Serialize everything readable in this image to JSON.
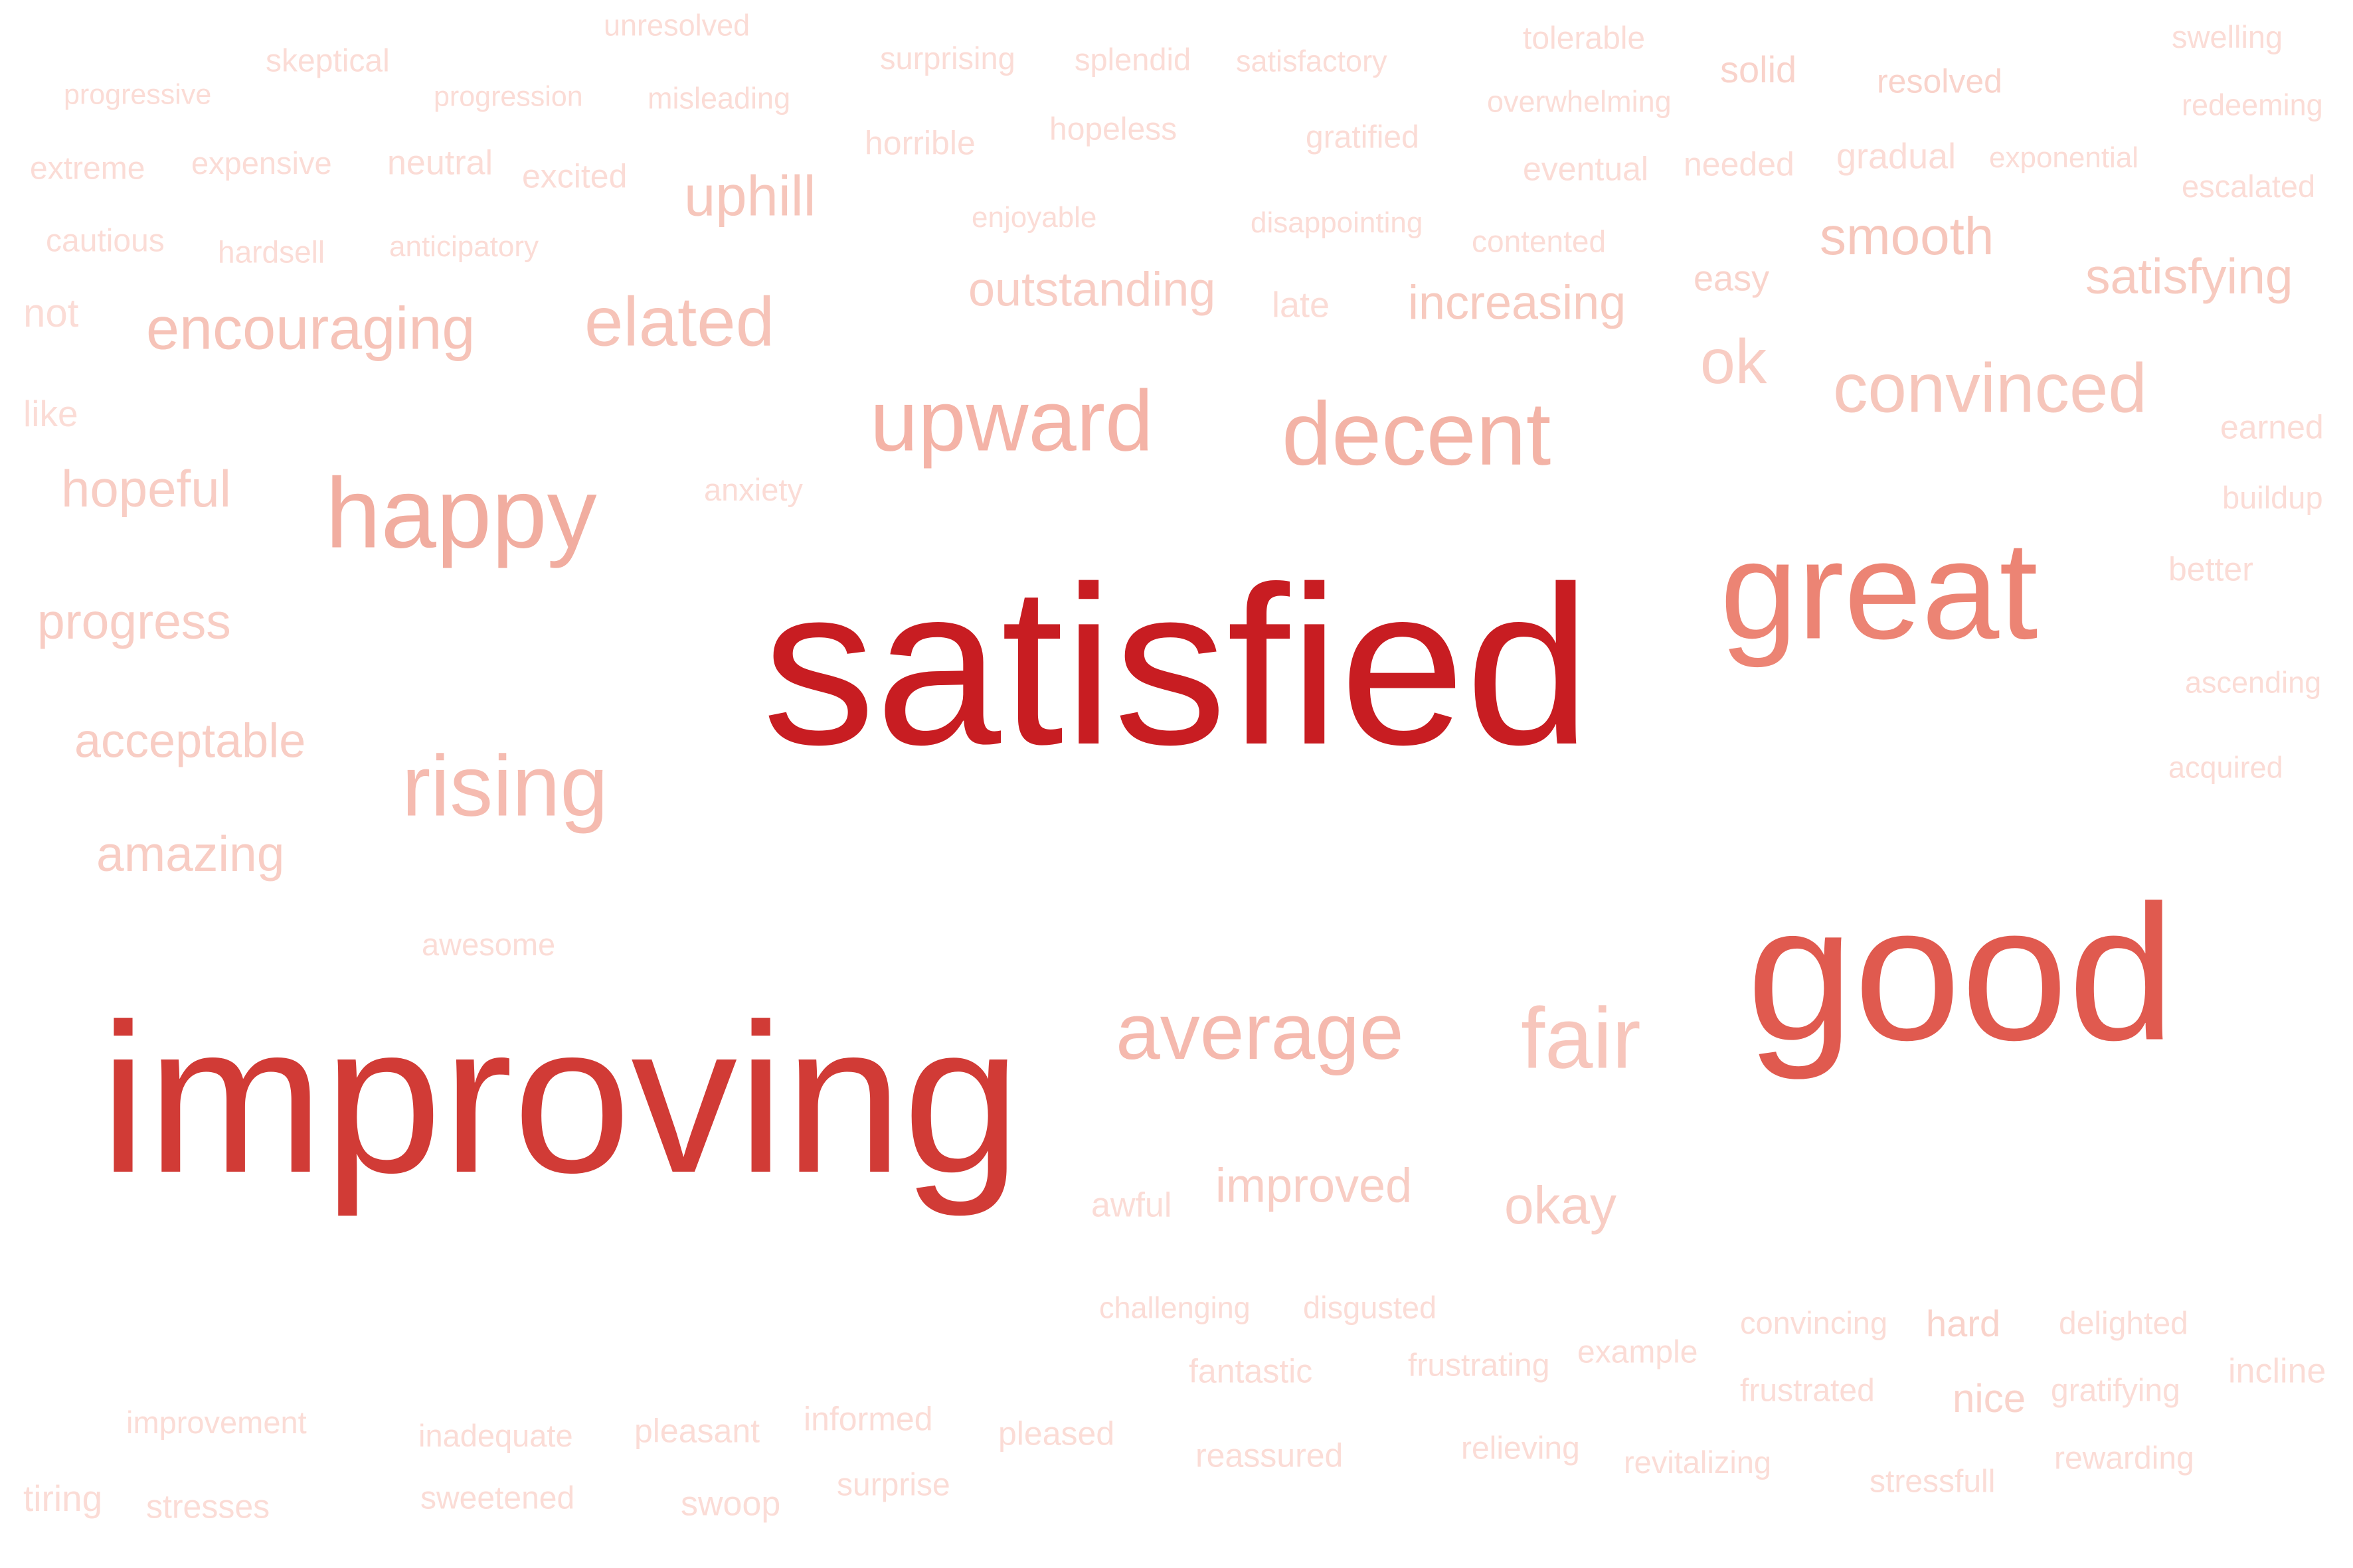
{
  "words": [
    {
      "text": "satisfied",
      "color": "#c81d22"
    },
    {
      "text": "improving",
      "color": "#d13b36"
    },
    {
      "text": "good",
      "color": "#e05a4f"
    },
    {
      "text": "great",
      "color": "#ec8474"
    },
    {
      "text": "happy",
      "color": "#f1ada0"
    },
    {
      "text": "decent",
      "color": "#f3b3a6"
    },
    {
      "text": "upward",
      "color": "#f4b3a7"
    },
    {
      "text": "rising",
      "color": "#f5bbb0"
    },
    {
      "text": "average",
      "color": "#f5b9ae"
    },
    {
      "text": "fair",
      "color": "#f7c6bc"
    },
    {
      "text": "elated",
      "color": "#f6c3b8"
    },
    {
      "text": "encouraging",
      "color": "#f6c3b8"
    },
    {
      "text": "convinced",
      "color": "#f6c6bb"
    },
    {
      "text": "ok",
      "color": "#f8cdc4"
    },
    {
      "text": "smooth",
      "color": "#f6c6bb"
    },
    {
      "text": "uphill",
      "color": "#f6c6bb"
    },
    {
      "text": "satisfying",
      "color": "#f7cabf"
    },
    {
      "text": "increasing",
      "color": "#f7cabf"
    },
    {
      "text": "outstanding",
      "color": "#f8cdc4"
    },
    {
      "text": "hopeful",
      "color": "#f8cdc4"
    },
    {
      "text": "progress",
      "color": "#f8cdc4"
    },
    {
      "text": "acceptable",
      "color": "#f8cdc4"
    },
    {
      "text": "amazing",
      "color": "#f8cdc4"
    },
    {
      "text": "okay",
      "color": "#f8cdc4"
    },
    {
      "text": "improved",
      "color": "#f8cdc4"
    },
    {
      "text": "nice",
      "color": "#f9d3cb"
    },
    {
      "text": "unresolved",
      "color": "#fbdcd6"
    },
    {
      "text": "skeptical",
      "color": "#fbdcd6"
    },
    {
      "text": "progressive",
      "color": "#fbdcd6"
    },
    {
      "text": "progression",
      "color": "#fbdcd6"
    },
    {
      "text": "misleading",
      "color": "#fbdcd6"
    },
    {
      "text": "surprising",
      "color": "#fbdcd6"
    },
    {
      "text": "splendid",
      "color": "#fbdcd6"
    },
    {
      "text": "satisfactory",
      "color": "#fbdcd6"
    },
    {
      "text": "tolerable",
      "color": "#fbdcd6"
    },
    {
      "text": "swelling",
      "color": "#fbdcd6"
    },
    {
      "text": "solid",
      "color": "#f9d3cb"
    },
    {
      "text": "resolved",
      "color": "#f9d3cb"
    },
    {
      "text": "overwhelming",
      "color": "#fbdcd6"
    },
    {
      "text": "redeeming",
      "color": "#fbdcd6"
    },
    {
      "text": "horrible",
      "color": "#fbdcd6"
    },
    {
      "text": "hopeless",
      "color": "#fbdcd6"
    },
    {
      "text": "gratified",
      "color": "#fbdcd6"
    },
    {
      "text": "extreme",
      "color": "#fbdcd6"
    },
    {
      "text": "expensive",
      "color": "#fbdcd6"
    },
    {
      "text": "neutral",
      "color": "#fbdcd6"
    },
    {
      "text": "excited",
      "color": "#fbdcd6"
    },
    {
      "text": "eventual",
      "color": "#fbdcd6"
    },
    {
      "text": "needed",
      "color": "#fbdcd6"
    },
    {
      "text": "gradual",
      "color": "#fbdcd6"
    },
    {
      "text": "exponential",
      "color": "#fbdcd6"
    },
    {
      "text": "escalated",
      "color": "#fbdcd6"
    },
    {
      "text": "cautious",
      "color": "#fbdcd6"
    },
    {
      "text": "hardsell",
      "color": "#fbdcd6"
    },
    {
      "text": "anticipatory",
      "color": "#fbdcd6"
    },
    {
      "text": "enjoyable",
      "color": "#fbdcd6"
    },
    {
      "text": "disappointing",
      "color": "#fbdcd6"
    },
    {
      "text": "contented",
      "color": "#fbdcd6"
    },
    {
      "text": "easy",
      "color": "#f9d3cb"
    },
    {
      "text": "not",
      "color": "#fbdcd6"
    },
    {
      "text": "late",
      "color": "#fbdcd6"
    },
    {
      "text": "like",
      "color": "#fbdcd6"
    },
    {
      "text": "earned",
      "color": "#fbdcd6"
    },
    {
      "text": "anxiety",
      "color": "#fbdcd6"
    },
    {
      "text": "buildup",
      "color": "#fbdcd6"
    },
    {
      "text": "better",
      "color": "#fbdcd6"
    },
    {
      "text": "ascending",
      "color": "#fbdcd6"
    },
    {
      "text": "acquired",
      "color": "#fbdcd6"
    },
    {
      "text": "awesome",
      "color": "#fbdcd6"
    },
    {
      "text": "awful",
      "color": "#fbdcd6"
    },
    {
      "text": "challenging",
      "color": "#fbdcd6"
    },
    {
      "text": "disgusted",
      "color": "#fbdcd6"
    },
    {
      "text": "convincing",
      "color": "#fbdcd6"
    },
    {
      "text": "hard",
      "color": "#f9d3cb"
    },
    {
      "text": "delighted",
      "color": "#fbdcd6"
    },
    {
      "text": "incline",
      "color": "#fbdcd6"
    },
    {
      "text": "fantastic",
      "color": "#fbdcd6"
    },
    {
      "text": "frustrating",
      "color": "#fbdcd6"
    },
    {
      "text": "example",
      "color": "#fbdcd6"
    },
    {
      "text": "frustrated",
      "color": "#fbdcd6"
    },
    {
      "text": "gratifying",
      "color": "#fbdcd6"
    },
    {
      "text": "improvement",
      "color": "#fbdcd6"
    },
    {
      "text": "inadequate",
      "color": "#fbdcd6"
    },
    {
      "text": "pleasant",
      "color": "#fbdcd6"
    },
    {
      "text": "informed",
      "color": "#fbdcd6"
    },
    {
      "text": "pleased",
      "color": "#fbdcd6"
    },
    {
      "text": "reassured",
      "color": "#fbdcd6"
    },
    {
      "text": "relieving",
      "color": "#fbdcd6"
    },
    {
      "text": "revitalizing",
      "color": "#fbdcd6"
    },
    {
      "text": "stressfull",
      "color": "#fbdcd6"
    },
    {
      "text": "rewarding",
      "color": "#fbdcd6"
    },
    {
      "text": "tiring",
      "color": "#fbdcd6"
    },
    {
      "text": "stresses",
      "color": "#fbdcd6"
    },
    {
      "text": "sweetened",
      "color": "#fbdcd6"
    },
    {
      "text": "swoop",
      "color": "#fbdcd6"
    },
    {
      "text": "surprise",
      "color": "#fbdcd6"
    }
  ]
}
